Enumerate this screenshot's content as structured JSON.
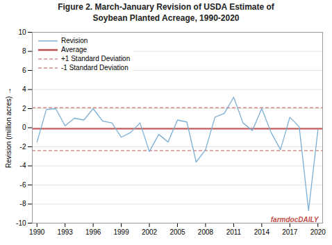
{
  "chart_data": {
    "type": "line",
    "title": "Figure 2. March-January Revision of USDA Estimate of\nSoybean Planted Acreage, 1990-2020",
    "x": [
      1990,
      1991,
      1992,
      1993,
      1994,
      1995,
      1996,
      1997,
      1998,
      1999,
      2000,
      2001,
      2002,
      2003,
      2004,
      2005,
      2006,
      2007,
      2008,
      2009,
      2010,
      2011,
      2012,
      2013,
      2014,
      2015,
      2016,
      2017,
      2018,
      2019,
      2020
    ],
    "series": [
      {
        "name": "Revision",
        "color": "#7bafd4",
        "line_style": "solid",
        "values": [
          -1.5,
          1.9,
          2.0,
          0.2,
          1.0,
          0.8,
          2.0,
          0.7,
          0.5,
          -1.0,
          -0.5,
          0.5,
          -2.5,
          -0.7,
          -1.5,
          0.8,
          0.6,
          -3.6,
          -2.3,
          1.1,
          1.5,
          3.2,
          0.5,
          -0.3,
          2.0,
          -0.5,
          -2.3,
          1.1,
          0.1,
          -8.7,
          -0.2
        ]
      }
    ],
    "hlines": [
      {
        "name": "Average",
        "value": -0.1,
        "color": "#c0504d",
        "line_style": "solid"
      },
      {
        "name": "+1 Standard Deviation",
        "value": 2.1,
        "color": "#c0504d",
        "line_style": "dashed"
      },
      {
        "name": "-1 Standard Deviation",
        "value": -2.4,
        "color": "#c0504d",
        "line_style": "dashed"
      }
    ],
    "ylabel": "Revision (million acres)",
    "xlim": [
      1989.5,
      2020.5
    ],
    "xticks": [
      1990,
      1993,
      1996,
      1999,
      2002,
      2005,
      2008,
      2011,
      2014,
      2017,
      2020
    ],
    "ylim": [
      -10,
      10
    ],
    "yticks": [
      -10,
      -8,
      -6,
      -4,
      -2,
      0,
      2,
      4,
      6,
      8,
      10
    ],
    "grid": true,
    "legend": "upper left",
    "annotations": [
      {
        "text": "farmdocDAILY",
        "color": "#c0504d"
      }
    ]
  }
}
